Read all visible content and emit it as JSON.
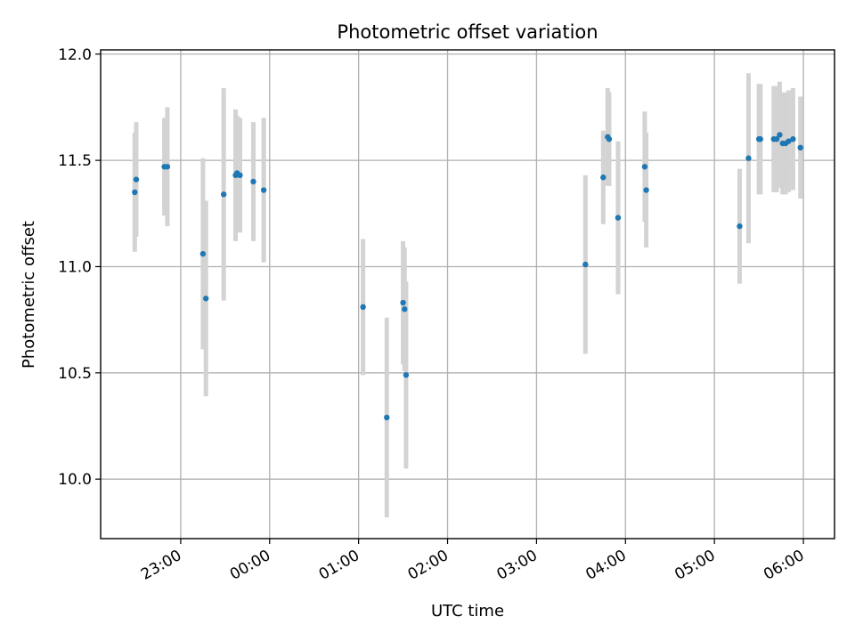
{
  "chart_data": {
    "type": "scatter",
    "title": "Photometric offset variation",
    "xlabel": "UTC time",
    "ylabel": "Photometric offset",
    "grid": true,
    "x_reference_date_note": "",
    "xlim": [
      "22:06",
      "06:21"
    ],
    "ylim": [
      9.72,
      12.02
    ],
    "x_tick_labels": [
      "23:00",
      "00:00",
      "01:00",
      "02:00",
      "03:00",
      "04:00",
      "05:00",
      "06:00"
    ],
    "x_tick_values": [
      "23:00",
      "00:00",
      "01:00",
      "02:00",
      "03:00",
      "04:00",
      "05:00",
      "06:00"
    ],
    "y_tick_labels": [
      "10.0",
      "10.5",
      "11.0",
      "11.5",
      "12.0"
    ],
    "y_tick_values": [
      10.0,
      10.5,
      11.0,
      11.5,
      12.0
    ],
    "marker_color": "#1f77b4",
    "errorbar_color": "#d3d3d3",
    "points": [
      {
        "x": "22:29",
        "y": 11.35,
        "err": 0.28
      },
      {
        "x": "22:30",
        "y": 11.41,
        "err": 0.27
      },
      {
        "x": "22:49",
        "y": 11.47,
        "err": 0.23
      },
      {
        "x": "22:51",
        "y": 11.47,
        "err": 0.28
      },
      {
        "x": "23:15",
        "y": 11.06,
        "err": 0.45
      },
      {
        "x": "23:17",
        "y": 10.85,
        "err": 0.46
      },
      {
        "x": "23:29",
        "y": 11.34,
        "err": 0.5
      },
      {
        "x": "23:37",
        "y": 11.43,
        "err": 0.31
      },
      {
        "x": "23:38",
        "y": 11.44,
        "err": 0.27
      },
      {
        "x": "23:40",
        "y": 11.43,
        "err": 0.27
      },
      {
        "x": "23:49",
        "y": 11.4,
        "err": 0.28
      },
      {
        "x": "23:56",
        "y": 11.36,
        "err": 0.34
      },
      {
        "x": "01:03",
        "y": 10.81,
        "err": 0.32
      },
      {
        "x": "01:19",
        "y": 10.29,
        "err": 0.47
      },
      {
        "x": "01:30",
        "y": 10.83,
        "err": 0.29
      },
      {
        "x": "01:31",
        "y": 10.8,
        "err": 0.29
      },
      {
        "x": "01:32",
        "y": 10.49,
        "err": 0.44
      },
      {
        "x": "03:33",
        "y": 11.01,
        "err": 0.42
      },
      {
        "x": "03:45",
        "y": 11.42,
        "err": 0.22
      },
      {
        "x": "03:48",
        "y": 11.61,
        "err": 0.23
      },
      {
        "x": "03:49",
        "y": 11.6,
        "err": 0.22
      },
      {
        "x": "03:55",
        "y": 11.23,
        "err": 0.36
      },
      {
        "x": "04:13",
        "y": 11.47,
        "err": 0.26
      },
      {
        "x": "04:14",
        "y": 11.36,
        "err": 0.27
      },
      {
        "x": "05:17",
        "y": 11.19,
        "err": 0.27
      },
      {
        "x": "05:23",
        "y": 11.51,
        "err": 0.4
      },
      {
        "x": "05:30",
        "y": 11.6,
        "err": 0.26
      },
      {
        "x": "05:31",
        "y": 11.6,
        "err": 0.26
      },
      {
        "x": "05:40",
        "y": 11.6,
        "err": 0.25
      },
      {
        "x": "05:42",
        "y": 11.6,
        "err": 0.25
      },
      {
        "x": "05:44",
        "y": 11.62,
        "err": 0.25
      },
      {
        "x": "05:46",
        "y": 11.58,
        "err": 0.24
      },
      {
        "x": "05:48",
        "y": 11.58,
        "err": 0.24
      },
      {
        "x": "05:50",
        "y": 11.59,
        "err": 0.24
      },
      {
        "x": "05:53",
        "y": 11.6,
        "err": 0.24
      },
      {
        "x": "05:58",
        "y": 11.56,
        "err": 0.24
      }
    ]
  }
}
